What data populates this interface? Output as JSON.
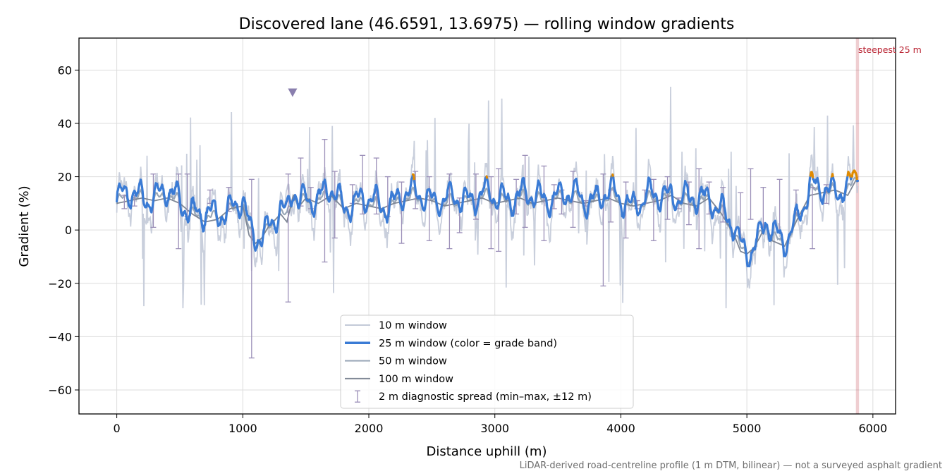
{
  "chart_data": {
    "type": "line",
    "title": "Discovered lane (46.6591, 13.6975) — rolling window gradients",
    "xlabel": "Distance uphill (m)",
    "ylabel": "Gradient (%)",
    "xlim": [
      -300,
      6180
    ],
    "ylim": [
      -69,
      72
    ],
    "xticks": [
      0,
      1000,
      2000,
      3000,
      4000,
      5000,
      6000
    ],
    "xtick_labels": [
      "0",
      "1000",
      "2000",
      "3000",
      "4000",
      "5000",
      "6000"
    ],
    "yticks": [
      -60,
      -40,
      -20,
      0,
      20,
      40,
      60
    ],
    "ytick_labels": [
      "−60",
      "−40",
      "−20",
      "0",
      "20",
      "40",
      "60"
    ],
    "grid": true,
    "legend_position": "lower-center",
    "legend": [
      {
        "label": "10 m window",
        "kind": "line",
        "color": "#c3cad8",
        "width": 2
      },
      {
        "label": "25 m window (color = grade band)",
        "kind": "line",
        "color": "#3a7bd5",
        "width": 3.5
      },
      {
        "label": "50 m window",
        "kind": "line",
        "color": "#9aa8b8",
        "width": 2
      },
      {
        "label": "100 m window",
        "kind": "line",
        "color": "#7f8795",
        "width": 2
      },
      {
        "label": "2 m diagnostic spread (min–max, ±12 m)",
        "kind": "errorbar",
        "color": "#9b8fb8"
      }
    ],
    "grade_band_colors": {
      "below_20": "#3a7bd5",
      "20_to_25": "#e08a00",
      "above_25": "#c0202c"
    },
    "series": [
      {
        "name": "100 m window",
        "color": "#7f8795",
        "x": [
          0,
          100,
          200,
          300,
          400,
          500,
          600,
          700,
          800,
          900,
          1000,
          1050,
          1100,
          1150,
          1200,
          1300,
          1350,
          1400,
          1450,
          1500,
          1600,
          1700,
          1800,
          1900,
          2000,
          2100,
          2200,
          2300,
          2400,
          2500,
          2600,
          2700,
          2800,
          2900,
          3000,
          3100,
          3200,
          3300,
          3400,
          3500,
          3600,
          3700,
          3800,
          3900,
          4000,
          4100,
          4200,
          4300,
          4400,
          4500,
          4600,
          4700,
          4800,
          4900,
          4950,
          5000,
          5050,
          5100,
          5150,
          5200,
          5300,
          5400,
          5500,
          5600,
          5700,
          5800,
          5880
        ],
        "y": [
          10,
          11,
          12,
          11,
          12,
          10,
          6,
          3,
          4,
          8,
          9,
          -2,
          -5,
          -3,
          1,
          6,
          3,
          13,
          9,
          12,
          10,
          13,
          8,
          10,
          9,
          8,
          10,
          11,
          12,
          11,
          9,
          10,
          11,
          12,
          10,
          11,
          12,
          10,
          11,
          12,
          11,
          10,
          11,
          12,
          10,
          9,
          10,
          11,
          13,
          10,
          9,
          12,
          6,
          -2,
          -8,
          -9,
          -7,
          -3,
          2,
          -4,
          -6,
          4,
          13,
          14,
          15,
          13,
          20
        ]
      },
      {
        "name": "2 m diagnostic spread (min–max, ±12 m)",
        "color": "#9b8fb8",
        "x": [
          60,
          140,
          290,
          490,
          560,
          740,
          890,
          1070,
          1360,
          1460,
          1540,
          1650,
          1730,
          1870,
          1950,
          2060,
          2150,
          2260,
          2370,
          2480,
          2640,
          2720,
          2850,
          2970,
          3030,
          3170,
          3240,
          3390,
          3470,
          3530,
          3620,
          3720,
          3860,
          3920,
          4040,
          4130,
          4190,
          4260,
          4370,
          4460,
          4540,
          4620,
          4700,
          4810,
          4950,
          5030,
          5130,
          5260,
          5390,
          5520,
          5630
        ],
        "min": [
          8,
          9,
          1,
          -7,
          5,
          10,
          7,
          -48,
          -27,
          9,
          8,
          -12,
          -3,
          10,
          6,
          6,
          5,
          -5,
          8,
          -4,
          -7,
          -1,
          4,
          -7,
          -8,
          6,
          1,
          -4,
          8,
          6,
          1,
          9,
          -21,
          3,
          -3,
          8,
          10,
          -4,
          4,
          8,
          2,
          -7,
          6,
          3,
          -3,
          4,
          1,
          -1,
          6,
          -7,
          10
        ],
        "max": [
          13,
          13,
          21,
          21,
          21,
          15,
          16,
          19,
          21,
          27,
          16,
          34,
          22,
          17,
          28,
          27,
          20,
          18,
          22,
          20,
          21,
          12,
          21,
          20,
          23,
          19,
          28,
          24,
          17,
          15,
          22,
          11,
          21,
          15,
          18,
          11,
          15,
          19,
          20,
          12,
          18,
          23,
          18,
          16,
          14,
          23,
          16,
          19,
          15,
          16,
          17
        ]
      }
    ],
    "annotations": [
      {
        "text": "steepest 25 m",
        "x_start": 5865,
        "x_end": 5890,
        "color": "#b8202f"
      },
      {
        "text": "",
        "marker": "triangle-down",
        "x": 1395,
        "y": 51.5,
        "color": "#8a7fae"
      }
    ],
    "footnote": "LiDAR-derived road-centreline profile (1 m DTM, bilinear) — not a surveyed asphalt gradient"
  }
}
